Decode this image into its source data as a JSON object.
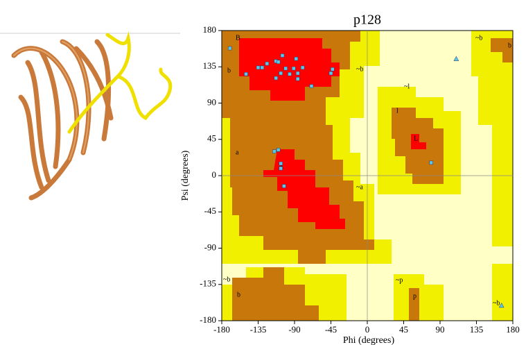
{
  "chart_data": {
    "type": "scatter",
    "title": "p128",
    "x_label": "Phi (degrees)",
    "y_label": "Psi (degrees)",
    "xlim": [
      -180,
      180
    ],
    "ylim": [
      -180,
      180
    ],
    "xticks": [
      -180,
      -135,
      -90,
      -45,
      0,
      45,
      90,
      135,
      180
    ],
    "yticks": [
      -180,
      -135,
      -90,
      -45,
      0,
      45,
      90,
      135,
      180
    ],
    "series": [
      {
        "color": "#5cc6e6",
        "marker": "square",
        "x": [
          -170,
          -150,
          -135,
          -130,
          -124,
          -113,
          -110,
          -105,
          -101,
          -96,
          -113,
          -107,
          -91,
          -86,
          -88,
          -80,
          -86,
          -69,
          -45,
          -43,
          -115,
          -110,
          -107,
          -107,
          -103,
          79
        ],
        "y": [
          158,
          126,
          134,
          134,
          139,
          142,
          141,
          149,
          133,
          126,
          121,
          127,
          133,
          127,
          145,
          134,
          120,
          111,
          127,
          132,
          30,
          32,
          15,
          9,
          -13,
          16
        ]
      },
      {
        "color": "#5cc6e6",
        "marker": "triangle",
        "x": [
          110,
          166
        ],
        "y": [
          145,
          -161
        ]
      }
    ],
    "region_labels": [
      "B",
      "b",
      "~b",
      "a",
      "A",
      "~a",
      "~l",
      "l",
      "L",
      "~b",
      "b",
      "~b",
      "b",
      "~p",
      "p",
      "~b"
    ]
  }
}
